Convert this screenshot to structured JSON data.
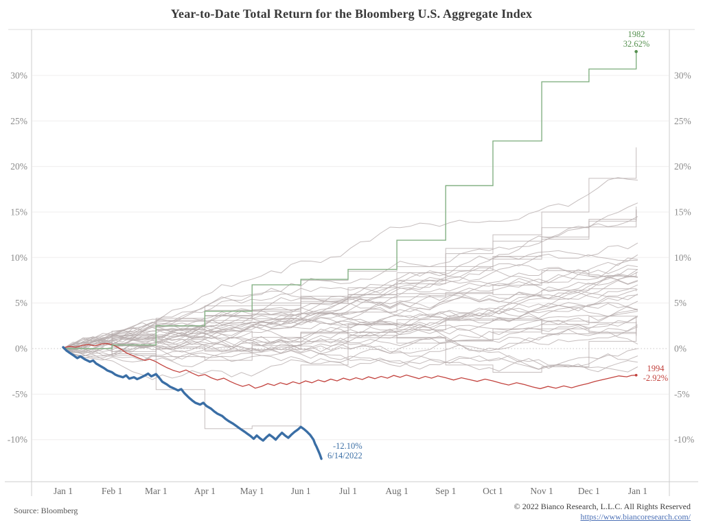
{
  "title": "Year-to-Date Total Return for the Bloomberg U.S. Aggregate Index",
  "footer": {
    "source": "Source: Bloomberg",
    "copyright": "© 2022 Bianco Research, L.L.C. All Rights Reserved",
    "link_text": "https://www.biancoresearch.com/",
    "link_href": "https://www.biancoresearch.com/"
  },
  "chart_data": {
    "type": "line",
    "title": "Year-to-Date Total Return for the Bloomberg U.S. Aggregate Index",
    "xlabel": "",
    "ylabel": "",
    "x_axis": {
      "tick_labels": [
        "Jan 1",
        "Feb 1",
        "Mar 1",
        "Apr 1",
        "May 1",
        "Jun 1",
        "Jul 1",
        "Aug 1",
        "Sep 1",
        "Oct 1",
        "Nov 1",
        "Dec 1",
        "Jan 1"
      ],
      "tick_days": [
        0,
        31,
        59,
        90,
        120,
        151,
        181,
        212,
        243,
        273,
        304,
        334,
        365
      ],
      "range_days": [
        0,
        365
      ]
    },
    "y_axis": {
      "tick_values": [
        -10,
        -5,
        0,
        5,
        10,
        15,
        20,
        25,
        30
      ],
      "tick_labels": [
        "-10%",
        "-5%",
        "0%",
        "5%",
        "10%",
        "15%",
        "20%",
        "25%",
        "30%"
      ],
      "range_pct": [
        -14.6,
        35
      ],
      "labels_on_both_sides": true
    },
    "grid": {
      "horizontal": true,
      "vertical": false,
      "zero_line": "dotted"
    },
    "legend": "none",
    "month_end_days": [
      31,
      59,
      90,
      120,
      151,
      181,
      212,
      243,
      273,
      304,
      334,
      364
    ],
    "highlight_series": [
      {
        "id": "2022",
        "color": "#3a6ea5",
        "width": 3.4,
        "kind": "daily",
        "annotation": [
          "-12.10%",
          "6/14/2022"
        ],
        "end_value": -12.1,
        "end_date": "6/14/2022",
        "points": [
          [
            0,
            0.15
          ],
          [
            2,
            -0.2
          ],
          [
            4,
            -0.45
          ],
          [
            7,
            -0.8
          ],
          [
            9,
            -1.05
          ],
          [
            11,
            -0.85
          ],
          [
            14,
            -1.2
          ],
          [
            17,
            -1.45
          ],
          [
            19,
            -1.3
          ],
          [
            21,
            -1.65
          ],
          [
            24,
            -1.95
          ],
          [
            26,
            -2.15
          ],
          [
            28,
            -2.4
          ],
          [
            31,
            -2.6
          ],
          [
            33,
            -2.85
          ],
          [
            35,
            -3.0
          ],
          [
            38,
            -3.15
          ],
          [
            40,
            -2.95
          ],
          [
            42,
            -3.3
          ],
          [
            45,
            -3.15
          ],
          [
            47,
            -3.35
          ],
          [
            49,
            -3.2
          ],
          [
            52,
            -2.95
          ],
          [
            54,
            -2.75
          ],
          [
            56,
            -3.05
          ],
          [
            59,
            -2.8
          ],
          [
            61,
            -3.2
          ],
          [
            63,
            -3.65
          ],
          [
            66,
            -3.95
          ],
          [
            68,
            -4.2
          ],
          [
            70,
            -4.35
          ],
          [
            73,
            -4.6
          ],
          [
            75,
            -4.45
          ],
          [
            77,
            -4.9
          ],
          [
            80,
            -5.4
          ],
          [
            82,
            -5.7
          ],
          [
            84,
            -5.95
          ],
          [
            87,
            -6.15
          ],
          [
            89,
            -5.95
          ],
          [
            91,
            -6.3
          ],
          [
            94,
            -6.6
          ],
          [
            96,
            -6.9
          ],
          [
            98,
            -7.15
          ],
          [
            101,
            -7.4
          ],
          [
            103,
            -7.7
          ],
          [
            105,
            -7.95
          ],
          [
            108,
            -8.25
          ],
          [
            110,
            -8.5
          ],
          [
            112,
            -8.75
          ],
          [
            115,
            -9.1
          ],
          [
            117,
            -9.35
          ],
          [
            119,
            -9.6
          ],
          [
            121,
            -9.9
          ],
          [
            123,
            -9.55
          ],
          [
            125,
            -9.85
          ],
          [
            127,
            -10.1
          ],
          [
            129,
            -9.75
          ],
          [
            131,
            -9.45
          ],
          [
            133,
            -9.7
          ],
          [
            135,
            -10.0
          ],
          [
            137,
            -9.6
          ],
          [
            139,
            -9.25
          ],
          [
            141,
            -9.55
          ],
          [
            143,
            -9.8
          ],
          [
            145,
            -9.45
          ],
          [
            147,
            -9.15
          ],
          [
            149,
            -8.9
          ],
          [
            151,
            -8.6
          ],
          [
            153,
            -8.85
          ],
          [
            155,
            -9.15
          ],
          [
            157,
            -9.5
          ],
          [
            159,
            -10.0
          ],
          [
            160,
            -10.45
          ],
          [
            161,
            -10.8
          ],
          [
            162,
            -11.2
          ],
          [
            163,
            -11.6
          ],
          [
            164,
            -12.1
          ]
        ]
      },
      {
        "id": "1982",
        "color": "#83b183",
        "annotation_color": "#55904f",
        "width": 1.4,
        "kind": "monthly-step",
        "annotation": [
          "1982",
          "32.62%"
        ],
        "end_value": 32.62,
        "monthly_cum": [
          0.4,
          2.5,
          4.1,
          7.0,
          7.6,
          8.7,
          11.9,
          17.9,
          22.8,
          29.3,
          30.7,
          32.62
        ],
        "end_marker": true
      },
      {
        "id": "1994",
        "color": "#c2413c",
        "width": 1.3,
        "kind": "daily",
        "annotation": [
          "1994",
          "-2.92%"
        ],
        "end_value": -2.92,
        "end_marker": true,
        "points": [
          [
            0,
            0.1
          ],
          [
            4,
            0.25
          ],
          [
            8,
            0.15
          ],
          [
            12,
            0.35
          ],
          [
            16,
            0.45
          ],
          [
            20,
            0.3
          ],
          [
            24,
            0.5
          ],
          [
            28,
            0.55
          ],
          [
            31,
            0.45
          ],
          [
            34,
            0.2
          ],
          [
            37,
            -0.1
          ],
          [
            40,
            -0.45
          ],
          [
            44,
            -0.75
          ],
          [
            48,
            -1.05
          ],
          [
            52,
            -1.3
          ],
          [
            55,
            -1.15
          ],
          [
            59,
            -1.45
          ],
          [
            62,
            -1.75
          ],
          [
            66,
            -2.1
          ],
          [
            70,
            -2.4
          ],
          [
            74,
            -2.6
          ],
          [
            78,
            -2.35
          ],
          [
            82,
            -2.7
          ],
          [
            86,
            -3.0
          ],
          [
            90,
            -2.85
          ],
          [
            94,
            -3.2
          ],
          [
            98,
            -3.45
          ],
          [
            102,
            -3.25
          ],
          [
            106,
            -3.6
          ],
          [
            110,
            -3.9
          ],
          [
            114,
            -4.15
          ],
          [
            118,
            -3.95
          ],
          [
            122,
            -4.35
          ],
          [
            126,
            -4.15
          ],
          [
            130,
            -3.85
          ],
          [
            134,
            -4.05
          ],
          [
            138,
            -3.75
          ],
          [
            142,
            -3.95
          ],
          [
            146,
            -3.65
          ],
          [
            150,
            -3.85
          ],
          [
            154,
            -3.55
          ],
          [
            158,
            -3.75
          ],
          [
            162,
            -3.45
          ],
          [
            166,
            -3.65
          ],
          [
            170,
            -3.35
          ],
          [
            174,
            -3.55
          ],
          [
            178,
            -3.25
          ],
          [
            182,
            -3.45
          ],
          [
            186,
            -3.2
          ],
          [
            190,
            -3.4
          ],
          [
            194,
            -3.1
          ],
          [
            198,
            -3.3
          ],
          [
            202,
            -3.05
          ],
          [
            206,
            -3.25
          ],
          [
            210,
            -2.95
          ],
          [
            214,
            -3.15
          ],
          [
            218,
            -2.9
          ],
          [
            222,
            -3.1
          ],
          [
            226,
            -3.3
          ],
          [
            230,
            -3.05
          ],
          [
            234,
            -3.25
          ],
          [
            238,
            -3.0
          ],
          [
            243,
            -3.2
          ],
          [
            248,
            -3.45
          ],
          [
            253,
            -3.2
          ],
          [
            258,
            -3.4
          ],
          [
            263,
            -3.6
          ],
          [
            268,
            -3.35
          ],
          [
            273,
            -3.55
          ],
          [
            278,
            -3.8
          ],
          [
            283,
            -4.0
          ],
          [
            288,
            -3.75
          ],
          [
            293,
            -3.95
          ],
          [
            298,
            -4.2
          ],
          [
            303,
            -4.4
          ],
          [
            308,
            -4.15
          ],
          [
            313,
            -4.35
          ],
          [
            318,
            -4.1
          ],
          [
            323,
            -4.3
          ],
          [
            328,
            -4.05
          ],
          [
            333,
            -3.85
          ],
          [
            338,
            -3.6
          ],
          [
            343,
            -3.4
          ],
          [
            348,
            -3.2
          ],
          [
            353,
            -3.0
          ],
          [
            358,
            -3.1
          ],
          [
            361,
            -2.95
          ],
          [
            364,
            -2.92
          ]
        ]
      }
    ],
    "background_series": {
      "color": "#b7adad",
      "width": 1,
      "opacity": 0.8,
      "note": "YTD paths for all other years 1976-2021; year-end total return shown",
      "years": [
        {
          "year": 1976,
          "end": 15.6,
          "kind": "monthly-step"
        },
        {
          "year": 1977,
          "end": 3.0,
          "kind": "monthly-step"
        },
        {
          "year": 1978,
          "end": 1.4,
          "kind": "monthly-step"
        },
        {
          "year": 1979,
          "end": 1.9,
          "kind": "monthly-step"
        },
        {
          "year": 1980,
          "end": 2.7,
          "kind": "monthly-step",
          "monthly_cum": [
            0.3,
            -4.5,
            -8.8,
            -8.5,
            -1.8,
            1.2,
            0.6,
            -1.8,
            -2.6,
            -2.0,
            0.8,
            2.7
          ]
        },
        {
          "year": 1981,
          "end": 6.3,
          "kind": "monthly-step"
        },
        {
          "year": 1983,
          "end": 8.4,
          "kind": "monthly-step"
        },
        {
          "year": 1984,
          "end": 15.2,
          "kind": "monthly-step"
        },
        {
          "year": 1985,
          "end": 22.1,
          "kind": "monthly-step",
          "monthly_cum": [
            1.5,
            3.0,
            4.2,
            5.0,
            7.5,
            8.5,
            9.0,
            11.0,
            12.5,
            15.0,
            18.7,
            22.1
          ]
        },
        {
          "year": 1986,
          "end": 15.3,
          "kind": "monthly-step"
        },
        {
          "year": 1987,
          "end": 2.8,
          "kind": "monthly-step"
        },
        {
          "year": 1988,
          "end": 7.9,
          "kind": "daily"
        },
        {
          "year": 1989,
          "end": 14.5,
          "kind": "daily"
        },
        {
          "year": 1990,
          "end": 9.0,
          "kind": "daily"
        },
        {
          "year": 1991,
          "end": 16.0,
          "kind": "daily"
        },
        {
          "year": 1992,
          "end": 7.4,
          "kind": "daily"
        },
        {
          "year": 1993,
          "end": 9.8,
          "kind": "daily"
        },
        {
          "year": 1995,
          "end": 18.5,
          "kind": "daily"
        },
        {
          "year": 1996,
          "end": 3.6,
          "kind": "daily"
        },
        {
          "year": 1997,
          "end": 9.7,
          "kind": "daily"
        },
        {
          "year": 1998,
          "end": 8.7,
          "kind": "daily"
        },
        {
          "year": 1999,
          "end": -0.8,
          "kind": "daily"
        },
        {
          "year": 2000,
          "end": 11.6,
          "kind": "daily"
        },
        {
          "year": 2001,
          "end": 8.4,
          "kind": "daily"
        },
        {
          "year": 2002,
          "end": 10.3,
          "kind": "daily"
        },
        {
          "year": 2003,
          "end": 4.1,
          "kind": "daily"
        },
        {
          "year": 2004,
          "end": 4.3,
          "kind": "daily"
        },
        {
          "year": 2005,
          "end": 2.4,
          "kind": "daily"
        },
        {
          "year": 2006,
          "end": 4.3,
          "kind": "daily"
        },
        {
          "year": 2007,
          "end": 7.0,
          "kind": "daily"
        },
        {
          "year": 2008,
          "end": 5.2,
          "kind": "daily"
        },
        {
          "year": 2009,
          "end": 5.9,
          "kind": "daily"
        },
        {
          "year": 2010,
          "end": 6.5,
          "kind": "daily"
        },
        {
          "year": 2011,
          "end": 7.8,
          "kind": "daily"
        },
        {
          "year": 2012,
          "end": 4.2,
          "kind": "daily"
        },
        {
          "year": 2013,
          "end": -2.0,
          "kind": "daily"
        },
        {
          "year": 2014,
          "end": 6.0,
          "kind": "daily"
        },
        {
          "year": 2015,
          "end": 0.5,
          "kind": "daily"
        },
        {
          "year": 2016,
          "end": 2.6,
          "kind": "daily"
        },
        {
          "year": 2017,
          "end": 3.5,
          "kind": "daily"
        },
        {
          "year": 2018,
          "end": 0.0,
          "kind": "daily"
        },
        {
          "year": 2019,
          "end": 8.7,
          "kind": "daily"
        },
        {
          "year": 2020,
          "end": 7.5,
          "kind": "daily"
        },
        {
          "year": 2021,
          "end": -1.5,
          "kind": "daily"
        }
      ]
    },
    "colors": {
      "grid": "#efeded",
      "zero_line": "#c8c4c4",
      "axis_border": "#cccccc",
      "tick_label": "#8a8a8a",
      "x_label": "#6b6b6b"
    }
  }
}
